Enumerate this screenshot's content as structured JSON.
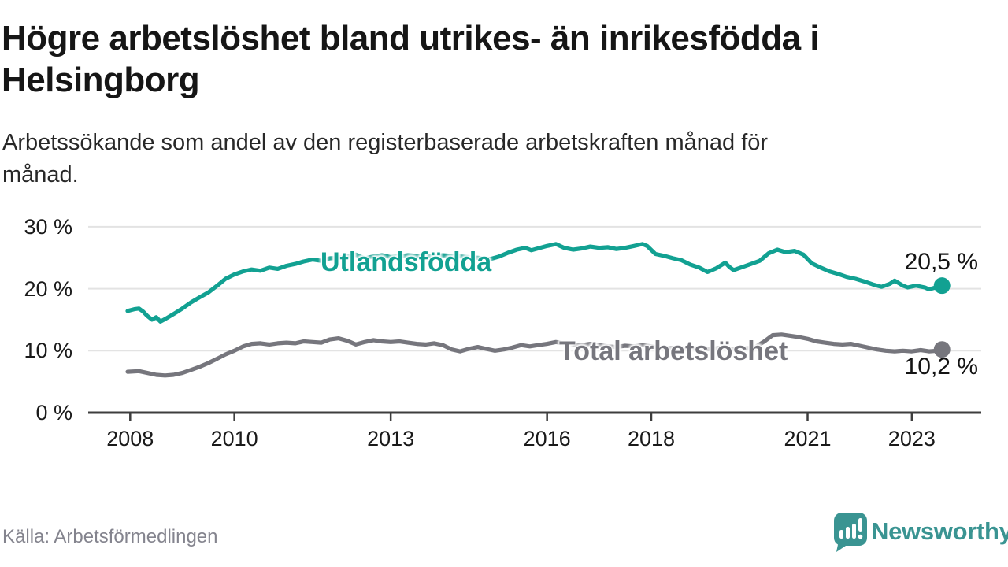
{
  "header": {
    "title_lines": [
      "Högre arbetslöshet bland utrikes- än inrikesfödda i",
      "Helsingborg"
    ],
    "subtitle_lines": [
      "Arbetssökande som andel av den registerbaserade arbetskraften månad för",
      "månad."
    ]
  },
  "footer": {
    "source": "Källa: Arbetsförmedlingen",
    "brand": "Newsworthy"
  },
  "colors": {
    "accent_teal": "#12a192",
    "secondary_grey": "#76767d",
    "brand_teal": "#3a9492",
    "gridline": "#e3e3e3",
    "axis": "#3d3d3d"
  },
  "chart_data": {
    "type": "line",
    "title": "Högre arbetslöshet bland utrikes- än inrikesfödda i Helsingborg",
    "subtitle": "Arbetssökande som andel av den registerbaserade arbetskraften månad för månad.",
    "xlabel": "",
    "ylabel": "",
    "xlim": [
      2007.2,
      2024.3
    ],
    "ylim": [
      0,
      32
    ],
    "grid": "horizontal",
    "legend_position": "inline",
    "x_ticks": [
      2008,
      2010,
      2013,
      2016,
      2018,
      2021,
      2023
    ],
    "y_gridlines": [
      0,
      10,
      20,
      30
    ],
    "y_tick_labels": [
      "0 %",
      "10 %",
      "20 %",
      "30 %"
    ],
    "series": [
      {
        "name": "Utlandsfödda",
        "color": "#12a192",
        "end_label": "20,5 %",
        "end_value": 20.5,
        "points": [
          [
            2007.95,
            16.4
          ],
          [
            2008.08,
            16.7
          ],
          [
            2008.17,
            16.8
          ],
          [
            2008.25,
            16.3
          ],
          [
            2008.33,
            15.6
          ],
          [
            2008.42,
            15.0
          ],
          [
            2008.5,
            15.4
          ],
          [
            2008.58,
            14.7
          ],
          [
            2008.67,
            15.1
          ],
          [
            2008.83,
            15.9
          ],
          [
            2009.0,
            16.8
          ],
          [
            2009.17,
            17.8
          ],
          [
            2009.33,
            18.6
          ],
          [
            2009.5,
            19.4
          ],
          [
            2009.67,
            20.5
          ],
          [
            2009.83,
            21.6
          ],
          [
            2010.0,
            22.3
          ],
          [
            2010.17,
            22.8
          ],
          [
            2010.33,
            23.1
          ],
          [
            2010.5,
            22.9
          ],
          [
            2010.67,
            23.4
          ],
          [
            2010.83,
            23.2
          ],
          [
            2011.0,
            23.7
          ],
          [
            2011.17,
            24.0
          ],
          [
            2011.33,
            24.4
          ],
          [
            2011.5,
            24.7
          ],
          [
            2011.67,
            24.5
          ],
          [
            2011.83,
            24.9
          ],
          [
            2012.0,
            25.0
          ],
          [
            2012.17,
            25.2
          ],
          [
            2012.33,
            25.5
          ],
          [
            2012.5,
            24.9
          ],
          [
            2012.67,
            25.2
          ],
          [
            2012.83,
            25.4
          ],
          [
            2013.0,
            25.1
          ],
          [
            2013.33,
            25.4
          ],
          [
            2013.67,
            25.2
          ],
          [
            2014.0,
            25.4
          ],
          [
            2014.33,
            25.2
          ],
          [
            2014.67,
            25.0
          ],
          [
            2014.92,
            24.8
          ],
          [
            2015.08,
            25.2
          ],
          [
            2015.25,
            25.8
          ],
          [
            2015.42,
            26.3
          ],
          [
            2015.58,
            26.6
          ],
          [
            2015.7,
            26.2
          ],
          [
            2015.83,
            26.5
          ],
          [
            2016.0,
            26.9
          ],
          [
            2016.17,
            27.2
          ],
          [
            2016.33,
            26.6
          ],
          [
            2016.5,
            26.3
          ],
          [
            2016.67,
            26.5
          ],
          [
            2016.83,
            26.8
          ],
          [
            2017.0,
            26.6
          ],
          [
            2017.17,
            26.7
          ],
          [
            2017.33,
            26.4
          ],
          [
            2017.5,
            26.6
          ],
          [
            2017.67,
            26.9
          ],
          [
            2017.83,
            27.2
          ],
          [
            2017.92,
            26.9
          ],
          [
            2018.08,
            25.6
          ],
          [
            2018.25,
            25.3
          ],
          [
            2018.42,
            24.9
          ],
          [
            2018.58,
            24.6
          ],
          [
            2018.75,
            23.9
          ],
          [
            2018.92,
            23.4
          ],
          [
            2019.08,
            22.7
          ],
          [
            2019.25,
            23.3
          ],
          [
            2019.42,
            24.2
          ],
          [
            2019.5,
            23.5
          ],
          [
            2019.58,
            23.0
          ],
          [
            2019.75,
            23.5
          ],
          [
            2019.92,
            24.0
          ],
          [
            2020.08,
            24.5
          ],
          [
            2020.25,
            25.7
          ],
          [
            2020.42,
            26.3
          ],
          [
            2020.58,
            25.9
          ],
          [
            2020.75,
            26.1
          ],
          [
            2020.92,
            25.5
          ],
          [
            2021.08,
            24.1
          ],
          [
            2021.25,
            23.4
          ],
          [
            2021.42,
            22.8
          ],
          [
            2021.58,
            22.4
          ],
          [
            2021.75,
            21.9
          ],
          [
            2021.92,
            21.6
          ],
          [
            2022.08,
            21.2
          ],
          [
            2022.25,
            20.7
          ],
          [
            2022.42,
            20.3
          ],
          [
            2022.58,
            20.8
          ],
          [
            2022.67,
            21.3
          ],
          [
            2022.83,
            20.5
          ],
          [
            2022.92,
            20.2
          ],
          [
            2023.08,
            20.5
          ],
          [
            2023.25,
            20.2
          ],
          [
            2023.33,
            19.9
          ],
          [
            2023.42,
            20.1
          ],
          [
            2023.58,
            20.5
          ]
        ]
      },
      {
        "name": "Total arbetslöshet",
        "color": "#76767d",
        "end_label": "10,2 %",
        "end_value": 10.2,
        "points": [
          [
            2007.95,
            6.6
          ],
          [
            2008.17,
            6.7
          ],
          [
            2008.33,
            6.4
          ],
          [
            2008.5,
            6.1
          ],
          [
            2008.67,
            6.0
          ],
          [
            2008.83,
            6.1
          ],
          [
            2009.0,
            6.4
          ],
          [
            2009.17,
            6.9
          ],
          [
            2009.33,
            7.4
          ],
          [
            2009.5,
            8.0
          ],
          [
            2009.67,
            8.7
          ],
          [
            2009.83,
            9.4
          ],
          [
            2010.0,
            10.0
          ],
          [
            2010.17,
            10.7
          ],
          [
            2010.33,
            11.1
          ],
          [
            2010.5,
            11.2
          ],
          [
            2010.67,
            11.0
          ],
          [
            2010.83,
            11.2
          ],
          [
            2011.0,
            11.3
          ],
          [
            2011.17,
            11.2
          ],
          [
            2011.33,
            11.5
          ],
          [
            2011.5,
            11.4
          ],
          [
            2011.67,
            11.3
          ],
          [
            2011.83,
            11.8
          ],
          [
            2012.0,
            12.0
          ],
          [
            2012.17,
            11.6
          ],
          [
            2012.33,
            11.0
          ],
          [
            2012.5,
            11.4
          ],
          [
            2012.67,
            11.7
          ],
          [
            2012.83,
            11.5
          ],
          [
            2013.0,
            11.4
          ],
          [
            2013.17,
            11.5
          ],
          [
            2013.33,
            11.3
          ],
          [
            2013.5,
            11.1
          ],
          [
            2013.67,
            11.0
          ],
          [
            2013.83,
            11.2
          ],
          [
            2014.0,
            10.9
          ],
          [
            2014.17,
            10.2
          ],
          [
            2014.33,
            9.9
          ],
          [
            2014.5,
            10.3
          ],
          [
            2014.67,
            10.6
          ],
          [
            2014.83,
            10.3
          ],
          [
            2015.0,
            10.0
          ],
          [
            2015.17,
            10.2
          ],
          [
            2015.33,
            10.5
          ],
          [
            2015.5,
            10.9
          ],
          [
            2015.67,
            10.7
          ],
          [
            2015.83,
            10.9
          ],
          [
            2016.0,
            11.1
          ],
          [
            2016.17,
            11.4
          ],
          [
            2016.33,
            11.2
          ],
          [
            2016.5,
            11.0
          ],
          [
            2016.67,
            10.9
          ],
          [
            2016.83,
            11.1
          ],
          [
            2017.0,
            10.9
          ],
          [
            2017.17,
            10.7
          ],
          [
            2017.33,
            10.6
          ],
          [
            2017.5,
            10.8
          ],
          [
            2017.67,
            10.7
          ],
          [
            2017.83,
            10.9
          ],
          [
            2018.0,
            10.7
          ],
          [
            2018.17,
            10.5
          ],
          [
            2018.33,
            10.4
          ],
          [
            2018.5,
            10.5
          ],
          [
            2018.67,
            10.3
          ],
          [
            2018.83,
            10.4
          ],
          [
            2019.0,
            10.2
          ],
          [
            2019.17,
            10.3
          ],
          [
            2019.33,
            10.5
          ],
          [
            2019.5,
            10.3
          ],
          [
            2019.67,
            10.2
          ],
          [
            2019.83,
            10.4
          ],
          [
            2020.0,
            10.6
          ],
          [
            2020.17,
            11.5
          ],
          [
            2020.33,
            12.5
          ],
          [
            2020.5,
            12.6
          ],
          [
            2020.67,
            12.4
          ],
          [
            2020.83,
            12.2
          ],
          [
            2021.0,
            11.9
          ],
          [
            2021.17,
            11.5
          ],
          [
            2021.33,
            11.3
          ],
          [
            2021.5,
            11.1
          ],
          [
            2021.67,
            11.0
          ],
          [
            2021.83,
            11.1
          ],
          [
            2022.0,
            10.8
          ],
          [
            2022.17,
            10.5
          ],
          [
            2022.33,
            10.2
          ],
          [
            2022.5,
            10.0
          ],
          [
            2022.67,
            9.9
          ],
          [
            2022.83,
            10.0
          ],
          [
            2023.0,
            9.9
          ],
          [
            2023.17,
            10.1
          ],
          [
            2023.33,
            9.9
          ],
          [
            2023.5,
            10.0
          ],
          [
            2023.58,
            10.2
          ]
        ]
      }
    ]
  }
}
